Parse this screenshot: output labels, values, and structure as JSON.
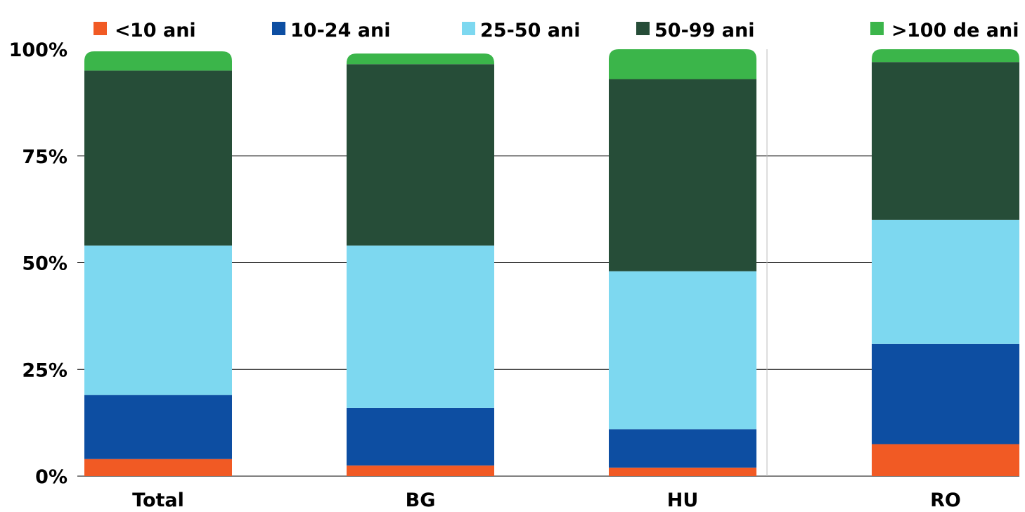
{
  "chart_data": {
    "type": "bar",
    "stacked": true,
    "percent": true,
    "categories": [
      "Total",
      "BG",
      "HU",
      "RO"
    ],
    "yticks": [
      "0%",
      "25%",
      "50%",
      "75%",
      "100%"
    ],
    "ylim": [
      0,
      100
    ],
    "grid": true,
    "legend_position": "top",
    "series": [
      {
        "name": "10 ani",
        "prefix": "<",
        "color": "#F15A24",
        "values": [
          4,
          2.5,
          2,
          7.5
        ]
      },
      {
        "name": "10-24 ani",
        "prefix": "",
        "color": "#0D4EA2",
        "values": [
          15,
          13.5,
          9,
          23.5
        ]
      },
      {
        "name": "25-50 ani",
        "prefix": "",
        "color": "#7DD8F0",
        "values": [
          35,
          38,
          37,
          29
        ]
      },
      {
        "name": "50-99 ani",
        "prefix": "",
        "color": "#264D38",
        "values": [
          41,
          42.5,
          45,
          37
        ]
      },
      {
        "name": "100 de ani",
        "prefix": ">",
        "color": "#3BB54A",
        "values": [
          4.5,
          2.5,
          7,
          3
        ]
      }
    ]
  }
}
